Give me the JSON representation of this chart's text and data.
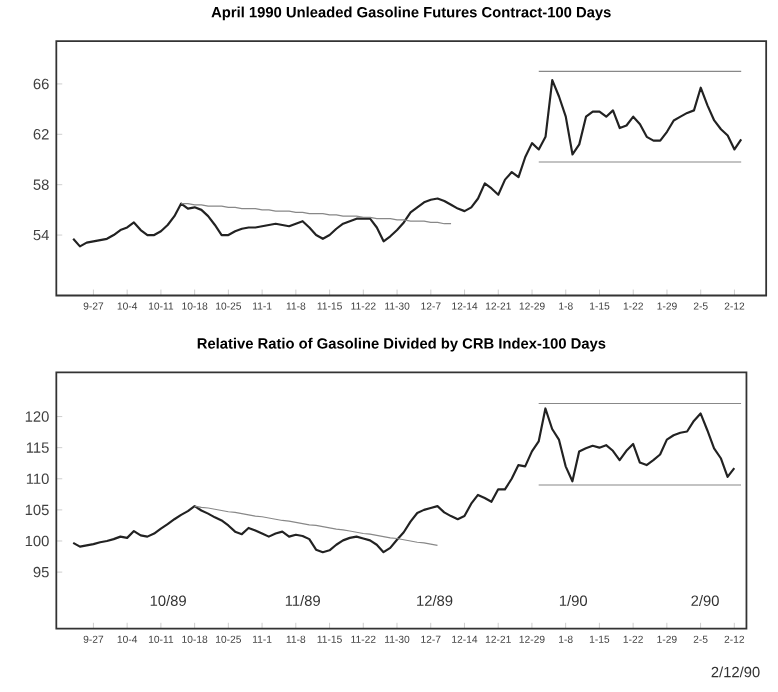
{
  "chart_data": [
    {
      "type": "line",
      "title": "April 1990 Unleaded Gasoline Futures Contract-100 Days",
      "categories": [
        null,
        null,
        null,
        "9-27",
        null,
        null,
        null,
        null,
        "10-4",
        null,
        null,
        null,
        null,
        "10-11",
        null,
        null,
        null,
        null,
        "10-18",
        null,
        null,
        null,
        null,
        "10-25",
        null,
        null,
        null,
        null,
        "11-1",
        null,
        null,
        null,
        null,
        "11-8",
        null,
        null,
        null,
        null,
        "11-15",
        null,
        null,
        null,
        null,
        "11-22",
        null,
        null,
        null,
        null,
        "11-30",
        null,
        null,
        null,
        null,
        "12-7",
        null,
        null,
        null,
        null,
        "12-14",
        null,
        null,
        null,
        null,
        "12-21",
        null,
        null,
        null,
        null,
        "12-29",
        null,
        null,
        null,
        null,
        "1-8",
        null,
        null,
        null,
        null,
        "1-15",
        null,
        null,
        null,
        null,
        "1-22",
        null,
        null,
        null,
        null,
        "1-29",
        null,
        null,
        null,
        null,
        "2-5",
        null,
        null,
        null,
        null,
        "2-12",
        null
      ],
      "ylim": [
        49.2,
        69.4
      ],
      "yticks": [
        54,
        58,
        62,
        66
      ],
      "series": [
        {
          "color": "#222222",
          "values": [
            53.7,
            53.1,
            53.4,
            53.5,
            53.6,
            53.7,
            54.0,
            54.4,
            54.6,
            55.0,
            54.4,
            54.0,
            54.0,
            54.3,
            54.8,
            55.5,
            56.5,
            56.1,
            56.2,
            56.0,
            55.5,
            54.8,
            54.0,
            54.0,
            54.3,
            54.5,
            54.6,
            54.6,
            54.7,
            54.8,
            54.9,
            54.8,
            54.7,
            54.9,
            55.1,
            54.6,
            54.0,
            53.7,
            54.0,
            54.5,
            54.9,
            55.1,
            55.3,
            55.3,
            55.3,
            54.6,
            53.5,
            53.9,
            54.4,
            55.0,
            55.8,
            56.2,
            56.6,
            56.8,
            56.9,
            56.7,
            56.4,
            56.1,
            55.9,
            56.2,
            56.9,
            58.1,
            57.7,
            57.2,
            58.4,
            59.0,
            58.6,
            60.2,
            61.3,
            60.8,
            61.8,
            66.3,
            65.0,
            63.4,
            60.4,
            61.2,
            63.4,
            63.8,
            63.8,
            63.4,
            63.9,
            62.5,
            62.7,
            63.4,
            62.8,
            61.8,
            61.5,
            61.5,
            62.2,
            63.1,
            63.4,
            63.7,
            63.9,
            65.7,
            64.3,
            63.1,
            62.4,
            61.9,
            60.8,
            61.6
          ]
        },
        {
          "color": "#888888",
          "values": [
            null,
            null,
            null,
            null,
            null,
            null,
            null,
            null,
            null,
            null,
            null,
            null,
            null,
            null,
            null,
            null,
            56.5,
            56.5,
            56.4,
            56.4,
            56.3,
            56.3,
            56.3,
            56.2,
            56.2,
            56.1,
            56.1,
            56.1,
            56.0,
            56.0,
            55.9,
            55.9,
            55.9,
            55.8,
            55.8,
            55.7,
            55.7,
            55.7,
            55.6,
            55.6,
            55.5,
            55.5,
            55.5,
            55.4,
            55.4,
            55.3,
            55.3,
            55.3,
            55.2,
            55.2,
            55.1,
            55.1,
            55.1,
            55.0,
            55.0,
            54.9,
            54.9,
            null,
            null,
            null,
            null,
            null,
            null,
            null,
            null,
            null,
            null,
            null,
            null,
            null,
            null,
            null,
            null,
            null,
            null,
            null,
            null,
            null,
            null,
            null,
            null,
            null,
            null,
            null,
            null,
            null,
            null,
            null,
            null,
            null,
            null,
            null,
            null,
            null,
            null,
            null,
            null,
            null,
            null,
            null
          ]
        },
        {
          "color": "#888888",
          "values": [
            null,
            null,
            null,
            null,
            null,
            null,
            null,
            null,
            null,
            null,
            null,
            null,
            null,
            null,
            null,
            null,
            null,
            null,
            null,
            null,
            null,
            null,
            null,
            null,
            null,
            null,
            null,
            null,
            null,
            null,
            null,
            null,
            null,
            null,
            null,
            null,
            null,
            null,
            null,
            null,
            null,
            null,
            null,
            null,
            null,
            null,
            null,
            null,
            null,
            null,
            null,
            null,
            null,
            null,
            null,
            null,
            null,
            null,
            null,
            null,
            null,
            null,
            null,
            null,
            null,
            null,
            null,
            null,
            null,
            67.0,
            67.0,
            67.0,
            67.0,
            67.0,
            67.0,
            67.0,
            67.0,
            67.0,
            67.0,
            67.0,
            67.0,
            67.0,
            67.0,
            67.0,
            67.0,
            67.0,
            67.0,
            67.0,
            67.0,
            67.0,
            67.0,
            67.0,
            67.0,
            67.0,
            67.0,
            67.0,
            67.0,
            67.0,
            67.0,
            67.0
          ]
        },
        {
          "color": "#888888",
          "values": [
            null,
            null,
            null,
            null,
            null,
            null,
            null,
            null,
            null,
            null,
            null,
            null,
            null,
            null,
            null,
            null,
            null,
            null,
            null,
            null,
            null,
            null,
            null,
            null,
            null,
            null,
            null,
            null,
            null,
            null,
            null,
            null,
            null,
            null,
            null,
            null,
            null,
            null,
            null,
            null,
            null,
            null,
            null,
            null,
            null,
            null,
            null,
            null,
            null,
            null,
            null,
            null,
            null,
            null,
            null,
            null,
            null,
            null,
            null,
            null,
            null,
            null,
            null,
            null,
            null,
            null,
            null,
            null,
            null,
            59.8,
            59.8,
            59.8,
            59.8,
            59.8,
            59.8,
            59.8,
            59.8,
            59.8,
            59.8,
            59.8,
            59.8,
            59.8,
            59.8,
            59.8,
            59.8,
            59.8,
            59.8,
            59.8,
            59.8,
            59.8,
            59.8,
            59.8,
            59.8,
            59.8,
            59.8,
            59.8,
            59.8,
            59.8,
            59.8,
            59.8
          ]
        }
      ]
    },
    {
      "type": "line",
      "title": "Relative Ratio of Gasoline Divided by CRB Index-100 Days",
      "categories": [
        null,
        null,
        null,
        "9-27",
        null,
        null,
        null,
        null,
        "10-4",
        null,
        null,
        null,
        null,
        "10-11",
        null,
        null,
        null,
        null,
        "10-18",
        null,
        null,
        null,
        null,
        "10-25",
        null,
        null,
        null,
        null,
        "11-1",
        null,
        null,
        null,
        null,
        "11-8",
        null,
        null,
        null,
        null,
        "11-15",
        null,
        null,
        null,
        null,
        "11-22",
        null,
        null,
        null,
        null,
        "11-30",
        null,
        null,
        null,
        null,
        "12-7",
        null,
        null,
        null,
        null,
        "12-14",
        null,
        null,
        null,
        null,
        "12-21",
        null,
        null,
        null,
        null,
        "12-29",
        null,
        null,
        null,
        null,
        "1-8",
        null,
        null,
        null,
        null,
        "1-15",
        null,
        null,
        null,
        null,
        "1-22",
        null,
        null,
        null,
        null,
        "1-29",
        null,
        null,
        null,
        null,
        "2-5",
        null,
        null,
        null,
        null,
        "2-12",
        null
      ],
      "ylim": [
        85.9,
        127.1
      ],
      "yticks": [
        95,
        100,
        105,
        110,
        115,
        120
      ],
      "series": [
        {
          "color": "#222222",
          "values": [
            99.7,
            99.1,
            99.3,
            99.5,
            99.8,
            100.0,
            100.3,
            100.7,
            100.5,
            101.6,
            100.9,
            100.7,
            101.2,
            102.0,
            102.7,
            103.5,
            104.2,
            104.8,
            105.6,
            104.9,
            104.4,
            103.8,
            103.3,
            102.5,
            101.5,
            101.1,
            102.1,
            101.7,
            101.2,
            100.7,
            101.2,
            101.5,
            100.7,
            101.0,
            100.8,
            100.3,
            98.6,
            98.2,
            98.5,
            99.4,
            100.1,
            100.5,
            100.7,
            100.4,
            100.1,
            99.4,
            98.2,
            98.9,
            100.2,
            101.4,
            103.1,
            104.5,
            105.0,
            105.3,
            105.6,
            104.6,
            104.0,
            103.5,
            104.0,
            106.0,
            107.4,
            106.9,
            106.3,
            108.3,
            108.3,
            110.0,
            112.2,
            112.0,
            114.4,
            116.0,
            121.3,
            118.0,
            116.3,
            112.0,
            109.6,
            114.4,
            114.9,
            115.3,
            115.0,
            115.4,
            114.5,
            113.0,
            114.5,
            115.6,
            112.6,
            112.2,
            113.0,
            113.9,
            116.3,
            117.0,
            117.4,
            117.6,
            119.3,
            120.5,
            117.8,
            114.9,
            113.3,
            110.3,
            111.7,
            null
          ]
        },
        {
          "color": "#888888",
          "values": [
            null,
            null,
            null,
            null,
            null,
            null,
            null,
            null,
            null,
            null,
            null,
            null,
            null,
            null,
            null,
            null,
            null,
            null,
            105.6,
            105.4,
            105.3,
            105.1,
            104.9,
            104.7,
            104.6,
            104.4,
            104.2,
            104.0,
            103.9,
            103.7,
            103.5,
            103.3,
            103.2,
            103.0,
            102.8,
            102.6,
            102.5,
            102.3,
            102.1,
            101.9,
            101.8,
            101.6,
            101.4,
            101.2,
            101.1,
            100.9,
            100.7,
            100.5,
            100.4,
            100.2,
            100.0,
            99.8,
            99.7,
            99.5,
            99.3,
            null,
            null,
            null,
            null,
            null,
            null,
            null,
            null,
            null,
            null,
            null,
            null,
            null,
            null,
            null,
            null,
            null,
            null,
            null,
            null,
            null,
            null,
            null,
            null,
            null,
            null,
            null,
            null,
            null,
            null,
            null,
            null,
            null,
            null,
            null,
            null,
            null,
            null,
            null,
            null,
            null,
            null,
            null,
            null,
            null
          ]
        },
        {
          "color": "#888888",
          "values": [
            null,
            null,
            null,
            null,
            null,
            null,
            null,
            null,
            null,
            null,
            null,
            null,
            null,
            null,
            null,
            null,
            null,
            null,
            null,
            null,
            null,
            null,
            null,
            null,
            null,
            null,
            null,
            null,
            null,
            null,
            null,
            null,
            null,
            null,
            null,
            null,
            null,
            null,
            null,
            null,
            null,
            null,
            null,
            null,
            null,
            null,
            null,
            null,
            null,
            null,
            null,
            null,
            null,
            null,
            null,
            null,
            null,
            null,
            null,
            null,
            null,
            null,
            null,
            null,
            null,
            null,
            null,
            null,
            null,
            122.1,
            122.1,
            122.1,
            122.1,
            122.1,
            122.1,
            122.1,
            122.1,
            122.1,
            122.1,
            122.1,
            122.1,
            122.1,
            122.1,
            122.1,
            122.1,
            122.1,
            122.1,
            122.1,
            122.1,
            122.1,
            122.1,
            122.1,
            122.1,
            122.1,
            122.1,
            122.1,
            122.1,
            122.1,
            122.1,
            122.1
          ]
        },
        {
          "color": "#888888",
          "values": [
            null,
            null,
            null,
            null,
            null,
            null,
            null,
            null,
            null,
            null,
            null,
            null,
            null,
            null,
            null,
            null,
            null,
            null,
            null,
            null,
            null,
            null,
            null,
            null,
            null,
            null,
            null,
            null,
            null,
            null,
            null,
            null,
            null,
            null,
            null,
            null,
            null,
            null,
            null,
            null,
            null,
            null,
            null,
            null,
            null,
            null,
            null,
            null,
            null,
            null,
            null,
            null,
            null,
            null,
            null,
            null,
            null,
            null,
            null,
            null,
            null,
            null,
            null,
            null,
            null,
            null,
            null,
            null,
            null,
            109.0,
            109.0,
            109.0,
            109.0,
            109.0,
            109.0,
            109.0,
            109.0,
            109.0,
            109.0,
            109.0,
            109.0,
            109.0,
            109.0,
            109.0,
            109.0,
            109.0,
            109.0,
            109.0,
            109.0,
            109.0,
            109.0,
            109.0,
            109.0,
            109.0,
            109.0,
            109.0,
            109.0,
            109.0,
            109.0,
            109.0
          ]
        }
      ],
      "annotations": [
        "10/89",
        "11/89",
        "12/89",
        "1/90",
        "2/90",
        "2/12/90"
      ]
    }
  ]
}
